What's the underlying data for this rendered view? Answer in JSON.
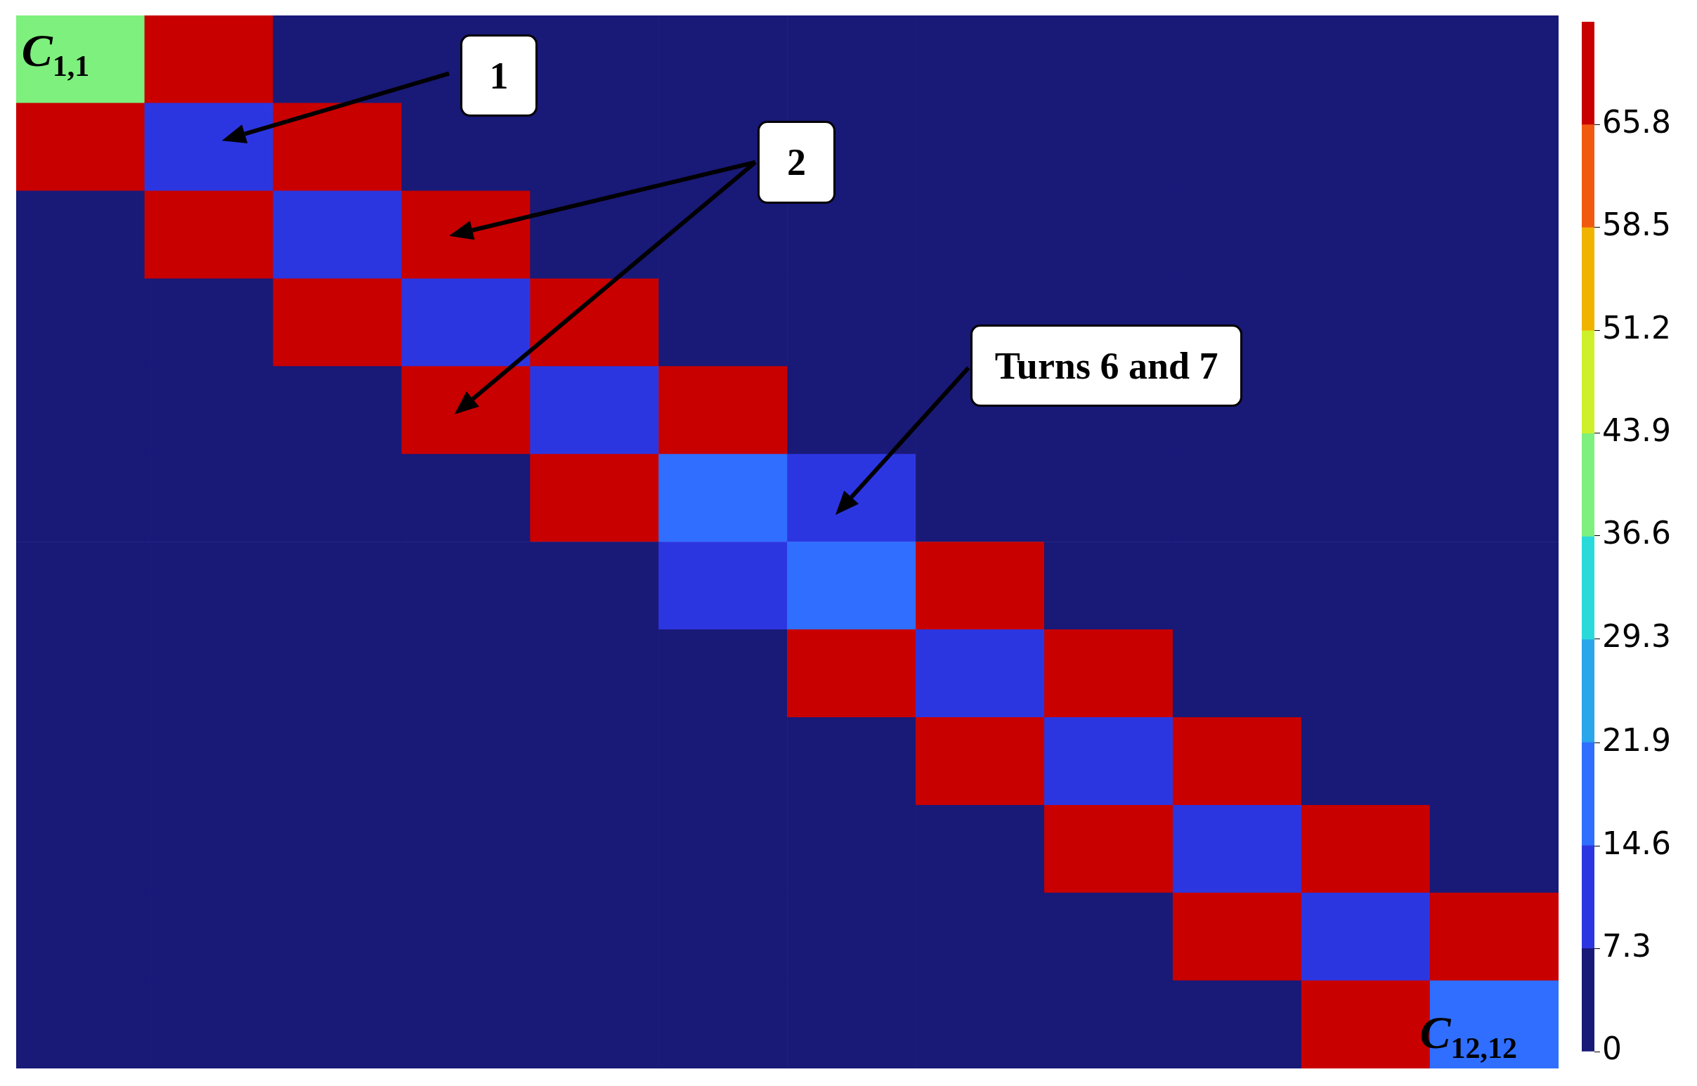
{
  "chart_data": {
    "type": "heatmap",
    "categories": [
      null,
      null,
      null,
      null,
      null,
      null,
      null,
      null,
      null,
      null,
      null,
      null
    ],
    "y_categories": [
      null,
      null,
      null,
      null,
      null,
      null,
      null,
      null,
      null,
      null,
      null,
      null
    ],
    "cells": [
      [
        40,
        70,
        0,
        0,
        0,
        0,
        0,
        0,
        0,
        0,
        0,
        0
      ],
      [
        70,
        10,
        70,
        0,
        0,
        0,
        0,
        0,
        0,
        0,
        0,
        0
      ],
      [
        0,
        70,
        10,
        70,
        0,
        0,
        0,
        0,
        0,
        0,
        0,
        0
      ],
      [
        0,
        0,
        70,
        10,
        70,
        0,
        0,
        0,
        0,
        0,
        0,
        0
      ],
      [
        0,
        0,
        0,
        70,
        10,
        70,
        0,
        0,
        0,
        0,
        0,
        0
      ],
      [
        0,
        0,
        0,
        0,
        70,
        18,
        10,
        0,
        0,
        0,
        0,
        0
      ],
      [
        0,
        0,
        0,
        0,
        0,
        10,
        18,
        70,
        0,
        0,
        0,
        0
      ],
      [
        0,
        0,
        0,
        0,
        0,
        0,
        70,
        10,
        70,
        0,
        0,
        0
      ],
      [
        0,
        0,
        0,
        0,
        0,
        0,
        0,
        70,
        10,
        70,
        0,
        0
      ],
      [
        0,
        0,
        0,
        0,
        0,
        0,
        0,
        0,
        70,
        10,
        70,
        0
      ],
      [
        0,
        0,
        0,
        0,
        0,
        0,
        0,
        0,
        0,
        70,
        10,
        70
      ],
      [
        0,
        0,
        0,
        0,
        0,
        0,
        0,
        0,
        0,
        0,
        70,
        18
      ]
    ],
    "clim": [
      0,
      73.1
    ],
    "cticks": [
      0,
      7.3,
      14.6,
      21.9,
      29.3,
      36.6,
      43.9,
      51.2,
      58.5,
      65.8
    ],
    "annotations": [
      "1",
      "2",
      "Turns 6 and 7",
      "C$_{1,1}$",
      "C$_{12,12}$"
    ]
  }
}
